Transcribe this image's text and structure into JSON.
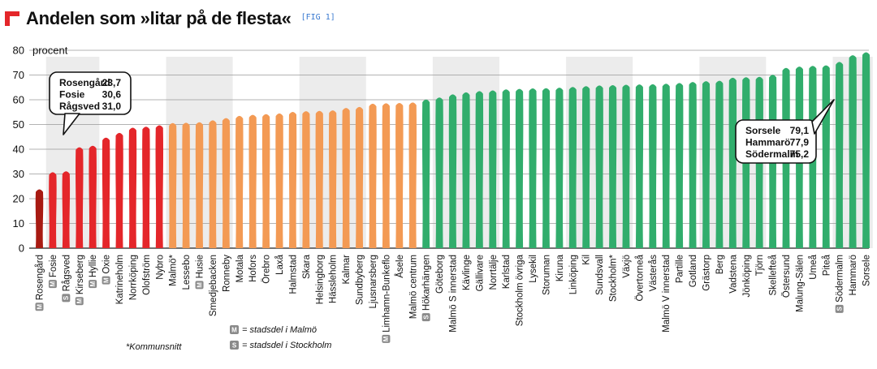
{
  "header": {
    "title": "Andelen som »litar på de flesta«",
    "fig_label": "[FIG 1]"
  },
  "chart_data": {
    "type": "bar",
    "ylabel": "procent",
    "ylim": [
      0,
      80
    ],
    "yticks": [
      0,
      10,
      20,
      30,
      40,
      50,
      60,
      70,
      80
    ],
    "grid": true,
    "colors": {
      "darkred": "#a81a12",
      "red": "#e4262a",
      "orange": "#f39a54",
      "green": "#31ad6c",
      "band": "#ececec",
      "badge": "#8a8a8a"
    },
    "categories": [
      {
        "name": "Rosengård",
        "value": 23.7,
        "color": "darkred",
        "badge": "M"
      },
      {
        "name": "Fosie",
        "value": 30.6,
        "color": "red",
        "badge": "M"
      },
      {
        "name": "Rågsved",
        "value": 31.0,
        "color": "red",
        "badge": "S"
      },
      {
        "name": "Kirseberg",
        "value": 40.7,
        "color": "red",
        "badge": "M"
      },
      {
        "name": "Hyllie",
        "value": 41.3,
        "color": "red",
        "badge": "M"
      },
      {
        "name": "Oxie",
        "value": 44.6,
        "color": "red",
        "badge": "M"
      },
      {
        "name": "Katrineholm",
        "value": 46.5,
        "color": "red",
        "badge": ""
      },
      {
        "name": "Norrköping",
        "value": 48.6,
        "color": "red",
        "badge": ""
      },
      {
        "name": "Olofström",
        "value": 49.0,
        "color": "red",
        "badge": ""
      },
      {
        "name": "Nybro",
        "value": 49.6,
        "color": "red",
        "badge": ""
      },
      {
        "name": "Malmö*",
        "value": 50.5,
        "color": "orange",
        "badge": ""
      },
      {
        "name": "Lessebo",
        "value": 50.6,
        "color": "orange",
        "badge": ""
      },
      {
        "name": "Husie",
        "value": 50.8,
        "color": "orange",
        "badge": "M"
      },
      {
        "name": "Smedjebacken",
        "value": 51.6,
        "color": "orange",
        "badge": ""
      },
      {
        "name": "Ronneby",
        "value": 52.5,
        "color": "orange",
        "badge": ""
      },
      {
        "name": "Motala",
        "value": 53.4,
        "color": "orange",
        "badge": ""
      },
      {
        "name": "Hofors",
        "value": 53.8,
        "color": "orange",
        "badge": ""
      },
      {
        "name": "Örebro",
        "value": 54.1,
        "color": "orange",
        "badge": ""
      },
      {
        "name": "Laxå",
        "value": 54.4,
        "color": "orange",
        "badge": ""
      },
      {
        "name": "Halmstad",
        "value": 55.0,
        "color": "orange",
        "badge": ""
      },
      {
        "name": "Skara",
        "value": 55.3,
        "color": "orange",
        "badge": ""
      },
      {
        "name": "Helsingborg",
        "value": 55.4,
        "color": "orange",
        "badge": ""
      },
      {
        "name": "Hässleholm",
        "value": 55.6,
        "color": "orange",
        "badge": ""
      },
      {
        "name": "Kalmar",
        "value": 56.6,
        "color": "orange",
        "badge": ""
      },
      {
        "name": "Sundbyberg",
        "value": 57.0,
        "color": "orange",
        "badge": ""
      },
      {
        "name": "Ljusnarsberg",
        "value": 58.3,
        "color": "orange",
        "badge": ""
      },
      {
        "name": "Limhamn-Bunkeflo",
        "value": 58.5,
        "color": "orange",
        "badge": "M"
      },
      {
        "name": "Åsele",
        "value": 58.6,
        "color": "orange",
        "badge": ""
      },
      {
        "name": "Malmö centrum",
        "value": 58.8,
        "color": "orange",
        "badge": ""
      },
      {
        "name": "Hökarhängen",
        "value": 60.0,
        "color": "green",
        "badge": "S"
      },
      {
        "name": "Göteborg",
        "value": 60.8,
        "color": "green",
        "badge": ""
      },
      {
        "name": "Malmö S innerstad",
        "value": 62.1,
        "color": "green",
        "badge": ""
      },
      {
        "name": "Kävlinge",
        "value": 62.9,
        "color": "green",
        "badge": ""
      },
      {
        "name": "Gällivare",
        "value": 63.4,
        "color": "green",
        "badge": ""
      },
      {
        "name": "Norrtälje",
        "value": 63.7,
        "color": "green",
        "badge": ""
      },
      {
        "name": "Karlstad",
        "value": 64.1,
        "color": "green",
        "badge": ""
      },
      {
        "name": "Stockholm övriga",
        "value": 64.3,
        "color": "green",
        "badge": ""
      },
      {
        "name": "Lysekil",
        "value": 64.5,
        "color": "green",
        "badge": ""
      },
      {
        "name": "Storuman",
        "value": 64.6,
        "color": "green",
        "badge": ""
      },
      {
        "name": "Kiruna",
        "value": 64.8,
        "color": "green",
        "badge": ""
      },
      {
        "name": "Linköping",
        "value": 65.1,
        "color": "green",
        "badge": ""
      },
      {
        "name": "Kil",
        "value": 65.4,
        "color": "green",
        "badge": ""
      },
      {
        "name": "Sundsvall",
        "value": 65.7,
        "color": "green",
        "badge": ""
      },
      {
        "name": "Stockholm*",
        "value": 65.8,
        "color": "green",
        "badge": ""
      },
      {
        "name": "Växjö",
        "value": 66.0,
        "color": "green",
        "badge": ""
      },
      {
        "name": "Övertorneå",
        "value": 66.1,
        "color": "green",
        "badge": ""
      },
      {
        "name": "Västerås",
        "value": 66.2,
        "color": "green",
        "badge": ""
      },
      {
        "name": "Malmö V innerstad",
        "value": 66.4,
        "color": "green",
        "badge": ""
      },
      {
        "name": "Partille",
        "value": 66.7,
        "color": "green",
        "badge": ""
      },
      {
        "name": "Gotland",
        "value": 67.1,
        "color": "green",
        "badge": ""
      },
      {
        "name": "Grästorp",
        "value": 67.4,
        "color": "green",
        "badge": ""
      },
      {
        "name": "Berg",
        "value": 67.6,
        "color": "green",
        "badge": ""
      },
      {
        "name": "Vadstena",
        "value": 68.8,
        "color": "green",
        "badge": ""
      },
      {
        "name": "Jönköping",
        "value": 69.0,
        "color": "green",
        "badge": ""
      },
      {
        "name": "Tjörn",
        "value": 69.2,
        "color": "green",
        "badge": ""
      },
      {
        "name": "Skellefteå",
        "value": 70.0,
        "color": "green",
        "badge": ""
      },
      {
        "name": "Östersund",
        "value": 72.8,
        "color": "green",
        "badge": ""
      },
      {
        "name": "Malung-Sälen",
        "value": 73.3,
        "color": "green",
        "badge": ""
      },
      {
        "name": "Umeå",
        "value": 73.6,
        "color": "green",
        "badge": ""
      },
      {
        "name": "Piteå",
        "value": 73.8,
        "color": "green",
        "badge": ""
      },
      {
        "name": "Södermalm",
        "value": 75.2,
        "color": "green",
        "badge": "S"
      },
      {
        "name": "Hammarö",
        "value": 77.9,
        "color": "green",
        "badge": ""
      },
      {
        "name": "Sorsele",
        "value": 79.1,
        "color": "green",
        "badge": ""
      }
    ],
    "bands": [
      [
        1,
        4
      ],
      [
        10,
        14
      ],
      [
        20,
        24
      ],
      [
        30,
        34
      ],
      [
        40,
        44
      ],
      [
        50,
        54
      ],
      [
        60,
        62
      ]
    ],
    "callout_low": [
      {
        "label": "Rosengård",
        "value": "23,7"
      },
      {
        "label": "Fosie",
        "value": "30,6"
      },
      {
        "label": "Rågsved",
        "value": "31,0"
      }
    ],
    "callout_high": [
      {
        "label": "Sorsele",
        "value": "79,1"
      },
      {
        "label": "Hammarö",
        "value": "77,9"
      },
      {
        "label": "Södermalm",
        "value": "75,2"
      }
    ],
    "footnote": "*Kommunsnitt",
    "legend": [
      {
        "badge": "M",
        "text": "= stadsdel i Malmö"
      },
      {
        "badge": "S",
        "text": "= stadsdel i Stockholm"
      }
    ]
  }
}
